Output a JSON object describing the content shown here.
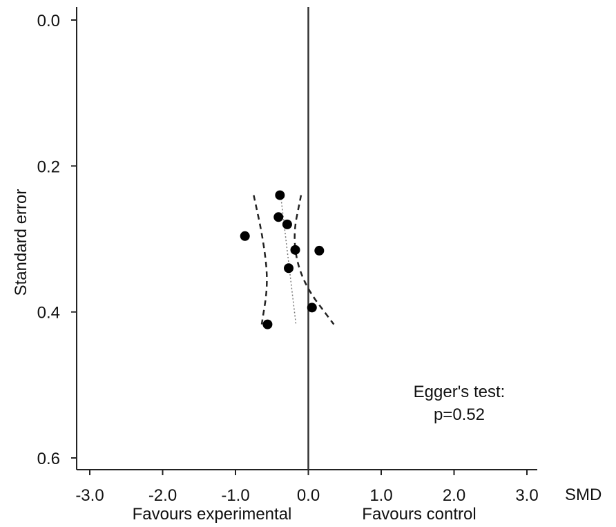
{
  "chart_data": {
    "type": "scatter",
    "xlabel": "SMD",
    "ylabel": "Standard error",
    "xlim": [
      -3.0,
      3.0
    ],
    "ylim": [
      0.0,
      0.6
    ],
    "y_inverted": true,
    "grid": false,
    "x_ticks": [
      "-3.0",
      "-2.0",
      "-1.0",
      "0.0",
      "1.0",
      "2.0",
      "3.0"
    ],
    "y_ticks": [
      "0.0",
      "0.2",
      "0.4",
      "0.6"
    ],
    "x_subtitles": [
      "Favours experimental",
      "Favours control"
    ],
    "reference_line_x": 0.0,
    "points": [
      {
        "x": -0.39,
        "y": 0.24
      },
      {
        "x": -0.41,
        "y": 0.27
      },
      {
        "x": -0.29,
        "y": 0.28
      },
      {
        "x": -0.87,
        "y": 0.296
      },
      {
        "x": -0.18,
        "y": 0.315
      },
      {
        "x": 0.15,
        "y": 0.316
      },
      {
        "x": -0.27,
        "y": 0.34
      },
      {
        "x": 0.05,
        "y": 0.394
      },
      {
        "x": -0.56,
        "y": 0.417
      }
    ],
    "ci_lower": [
      [
        -0.75,
        0.24
      ],
      [
        -0.62,
        0.3
      ],
      [
        -0.55,
        0.36
      ],
      [
        -0.64,
        0.417
      ]
    ],
    "ci_upper": [
      [
        -0.1,
        0.24
      ],
      [
        -0.22,
        0.3
      ],
      [
        -0.08,
        0.36
      ],
      [
        0.35,
        0.417
      ]
    ],
    "regression_line": [
      [
        -0.38,
        0.24
      ],
      [
        -0.17,
        0.417
      ]
    ],
    "annotation": [
      "Egger's test:",
      "p=0.52"
    ]
  }
}
